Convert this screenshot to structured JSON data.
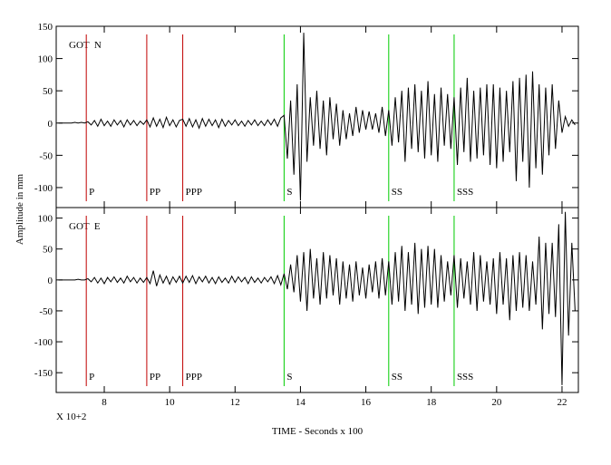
{
  "chart_data": [
    {
      "type": "line",
      "title": "GOT  N",
      "ylabel": "Amplitude in mm",
      "xlim": [
        6.53,
        22.5
      ],
      "ylim": [
        -131,
        150
      ],
      "yticks": [
        -100,
        -50,
        0,
        50,
        100,
        150
      ],
      "phases": [
        {
          "name": "P",
          "x": 7.45,
          "color": "#c00000"
        },
        {
          "name": "PP",
          "x": 9.3,
          "color": "#c00000"
        },
        {
          "name": "PPP",
          "x": 10.4,
          "color": "#c00000"
        },
        {
          "name": "S",
          "x": 13.5,
          "color": "#00cc00"
        },
        {
          "name": "SS",
          "x": 16.7,
          "color": "#00cc00"
        },
        {
          "name": "SSS",
          "x": 18.7,
          "color": "#00cc00"
        }
      ],
      "color": "#000000",
      "x": [
        6.6,
        6.7,
        6.8,
        6.9,
        7.0,
        7.1,
        7.2,
        7.3,
        7.4,
        7.5,
        7.6,
        7.7,
        7.8,
        7.9,
        8.0,
        8.1,
        8.2,
        8.3,
        8.4,
        8.5,
        8.6,
        8.7,
        8.8,
        8.9,
        9.0,
        9.1,
        9.2,
        9.3,
        9.4,
        9.5,
        9.6,
        9.7,
        9.8,
        9.9,
        10.0,
        10.1,
        10.2,
        10.3,
        10.4,
        10.5,
        10.6,
        10.7,
        10.8,
        10.9,
        11.0,
        11.1,
        11.2,
        11.3,
        11.4,
        11.5,
        11.6,
        11.7,
        11.8,
        11.9,
        12.0,
        12.1,
        12.2,
        12.3,
        12.4,
        12.5,
        12.6,
        12.7,
        12.8,
        12.9,
        13.0,
        13.1,
        13.2,
        13.3,
        13.4,
        13.5,
        13.6,
        13.7,
        13.8,
        13.9,
        14.0,
        14.1,
        14.2,
        14.3,
        14.4,
        14.5,
        14.6,
        14.7,
        14.8,
        14.9,
        15.0,
        15.1,
        15.2,
        15.3,
        15.4,
        15.5,
        15.6,
        15.7,
        15.8,
        15.9,
        16.0,
        16.1,
        16.2,
        16.3,
        16.4,
        16.5,
        16.6,
        16.7,
        16.8,
        16.9,
        17.0,
        17.1,
        17.2,
        17.3,
        17.4,
        17.5,
        17.6,
        17.7,
        17.8,
        17.9,
        18.0,
        18.1,
        18.2,
        18.3,
        18.4,
        18.5,
        18.6,
        18.7,
        18.8,
        18.9,
        19.0,
        19.1,
        19.2,
        19.3,
        19.4,
        19.5,
        19.6,
        19.7,
        19.8,
        19.9,
        20.0,
        20.1,
        20.2,
        20.3,
        20.4,
        20.5,
        20.6,
        20.7,
        20.8,
        20.9,
        21.0,
        21.1,
        21.2,
        21.3,
        21.4,
        21.5,
        21.6,
        21.7,
        21.8,
        21.9,
        22.0,
        22.1,
        22.2,
        22.3,
        22.4
      ],
      "values": [
        0,
        0,
        0,
        0,
        0,
        1,
        0,
        1,
        0,
        2,
        -3,
        4,
        -5,
        6,
        -4,
        3,
        -5,
        5,
        -3,
        4,
        -6,
        5,
        -3,
        4,
        -4,
        3,
        -2,
        5,
        -6,
        8,
        -5,
        6,
        -7,
        9,
        -4,
        5,
        -6,
        4,
        6,
        -5,
        7,
        -6,
        5,
        -8,
        7,
        -5,
        6,
        -4,
        5,
        -7,
        6,
        -5,
        4,
        -3,
        5,
        -4,
        3,
        -5,
        4,
        -3,
        5,
        -4,
        3,
        -4,
        5,
        -3,
        6,
        -5,
        8,
        12,
        -55,
        35,
        -80,
        60,
        -120,
        140,
        -60,
        40,
        -35,
        50,
        -40,
        35,
        -50,
        40,
        -25,
        30,
        -35,
        20,
        -25,
        15,
        -20,
        25,
        -15,
        20,
        -10,
        18,
        -10,
        15,
        -15,
        25,
        -20,
        20,
        -35,
        40,
        -30,
        50,
        -60,
        55,
        -40,
        60,
        -45,
        50,
        -55,
        65,
        -50,
        45,
        -60,
        55,
        -35,
        45,
        -40,
        40,
        -65,
        55,
        -45,
        70,
        -60,
        50,
        -55,
        55,
        -50,
        60,
        -65,
        60,
        -70,
        55,
        -60,
        50,
        -45,
        65,
        -90,
        70,
        -60,
        75,
        -100,
        80,
        -70,
        60,
        -80,
        55,
        -50,
        60,
        -40,
        35,
        -15,
        10,
        -5,
        5,
        -3
      ]
    },
    {
      "type": "line",
      "title": "GOT  E",
      "xlabel": "TIME - Seconds x 100",
      "xscale_note": "X 10+2",
      "xlim": [
        6.53,
        22.5
      ],
      "ylim": [
        -182,
        117
      ],
      "yticks": [
        -150,
        -100,
        -50,
        0,
        50,
        100
      ],
      "xticks": [
        8,
        10,
        12,
        14,
        16,
        18,
        20,
        22
      ],
      "phases": [
        {
          "name": "P",
          "x": 7.45,
          "color": "#c00000"
        },
        {
          "name": "PP",
          "x": 9.3,
          "color": "#c00000"
        },
        {
          "name": "PPP",
          "x": 10.4,
          "color": "#c00000"
        },
        {
          "name": "S",
          "x": 13.5,
          "color": "#00cc00"
        },
        {
          "name": "SS",
          "x": 16.7,
          "color": "#00cc00"
        },
        {
          "name": "SSS",
          "x": 18.7,
          "color": "#00cc00"
        }
      ],
      "color": "#000000",
      "x": [
        6.6,
        6.7,
        6.8,
        6.9,
        7.0,
        7.1,
        7.2,
        7.3,
        7.4,
        7.5,
        7.6,
        7.7,
        7.8,
        7.9,
        8.0,
        8.1,
        8.2,
        8.3,
        8.4,
        8.5,
        8.6,
        8.7,
        8.8,
        8.9,
        9.0,
        9.1,
        9.2,
        9.3,
        9.4,
        9.5,
        9.6,
        9.7,
        9.8,
        9.9,
        10.0,
        10.1,
        10.2,
        10.3,
        10.4,
        10.5,
        10.6,
        10.7,
        10.8,
        10.9,
        11.0,
        11.1,
        11.2,
        11.3,
        11.4,
        11.5,
        11.6,
        11.7,
        11.8,
        11.9,
        12.0,
        12.1,
        12.2,
        12.3,
        12.4,
        12.5,
        12.6,
        12.7,
        12.8,
        12.9,
        13.0,
        13.1,
        13.2,
        13.3,
        13.4,
        13.5,
        13.6,
        13.7,
        13.8,
        13.9,
        14.0,
        14.1,
        14.2,
        14.3,
        14.4,
        14.5,
        14.6,
        14.7,
        14.8,
        14.9,
        15.0,
        15.1,
        15.2,
        15.3,
        15.4,
        15.5,
        15.6,
        15.7,
        15.8,
        15.9,
        16.0,
        16.1,
        16.2,
        16.3,
        16.4,
        16.5,
        16.6,
        16.7,
        16.8,
        16.9,
        17.0,
        17.1,
        17.2,
        17.3,
        17.4,
        17.5,
        17.6,
        17.7,
        17.8,
        17.9,
        18.0,
        18.1,
        18.2,
        18.3,
        18.4,
        18.5,
        18.6,
        18.7,
        18.8,
        18.9,
        19.0,
        19.1,
        19.2,
        19.3,
        19.4,
        19.5,
        19.6,
        19.7,
        19.8,
        19.9,
        20.0,
        20.1,
        20.2,
        20.3,
        20.4,
        20.5,
        20.6,
        20.7,
        20.8,
        20.9,
        21.0,
        21.1,
        21.2,
        21.3,
        21.4,
        21.5,
        21.6,
        21.7,
        21.8,
        21.9,
        22.0,
        22.1,
        22.2,
        22.3,
        22.4
      ],
      "values": [
        0,
        0,
        0,
        0,
        0,
        0,
        1,
        0,
        0,
        2,
        -3,
        4,
        -5,
        3,
        -6,
        4,
        -3,
        5,
        -4,
        3,
        -5,
        6,
        -3,
        4,
        -5,
        3,
        -4,
        4,
        -6,
        15,
        -10,
        8,
        -5,
        6,
        -7,
        5,
        -4,
        6,
        -5,
        6,
        -4,
        7,
        -6,
        5,
        -3,
        6,
        -5,
        4,
        -6,
        5,
        -4,
        3,
        -5,
        6,
        -4,
        5,
        -3,
        4,
        -6,
        5,
        -4,
        3,
        -5,
        4,
        -3,
        5,
        -6,
        7,
        -8,
        10,
        -15,
        25,
        -20,
        40,
        -35,
        45,
        -50,
        50,
        -30,
        35,
        -40,
        45,
        -30,
        40,
        -25,
        35,
        -40,
        30,
        -30,
        25,
        -35,
        30,
        -25,
        20,
        -30,
        25,
        -20,
        30,
        -30,
        35,
        -25,
        30,
        -40,
        45,
        -35,
        55,
        -50,
        45,
        -40,
        60,
        -55,
        50,
        -45,
        55,
        -40,
        50,
        -45,
        40,
        -35,
        30,
        -25,
        40,
        -45,
        35,
        -30,
        30,
        -40,
        45,
        -50,
        40,
        -35,
        30,
        -40,
        35,
        -55,
        45,
        -40,
        35,
        -65,
        40,
        -50,
        45,
        -45,
        40,
        -50,
        30,
        -40,
        70,
        -80,
        60,
        -55,
        60,
        -60,
        90,
        -170,
        110,
        -90,
        60,
        -50
      ]
    }
  ]
}
